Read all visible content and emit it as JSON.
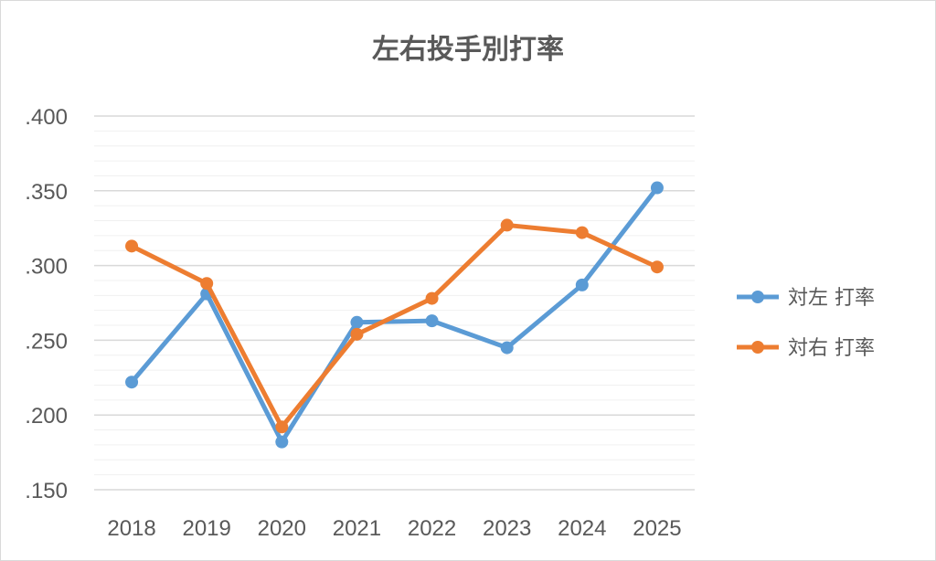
{
  "chart_data": {
    "type": "line",
    "title": "左右投手別打率",
    "xlabel": "",
    "ylabel": "",
    "categories": [
      "2018",
      "2019",
      "2020",
      "2021",
      "2022",
      "2023",
      "2024",
      "2025"
    ],
    "ylim": [
      0.15,
      0.4
    ],
    "y_major_step": 0.05,
    "y_minor_step": 0.01,
    "y_tick_labels": [
      ".150",
      ".200",
      ".250",
      ".300",
      ".350",
      ".400"
    ],
    "grid": true,
    "legend_position": "right",
    "series": [
      {
        "name": "対左 打率",
        "color": "#5b9bd5",
        "values": [
          0.222,
          0.281,
          0.182,
          0.262,
          0.263,
          0.245,
          0.287,
          0.352
        ]
      },
      {
        "name": "対右 打率",
        "color": "#ed7d31",
        "values": [
          0.313,
          0.288,
          0.192,
          0.254,
          0.278,
          0.327,
          0.322,
          0.299
        ]
      }
    ]
  }
}
